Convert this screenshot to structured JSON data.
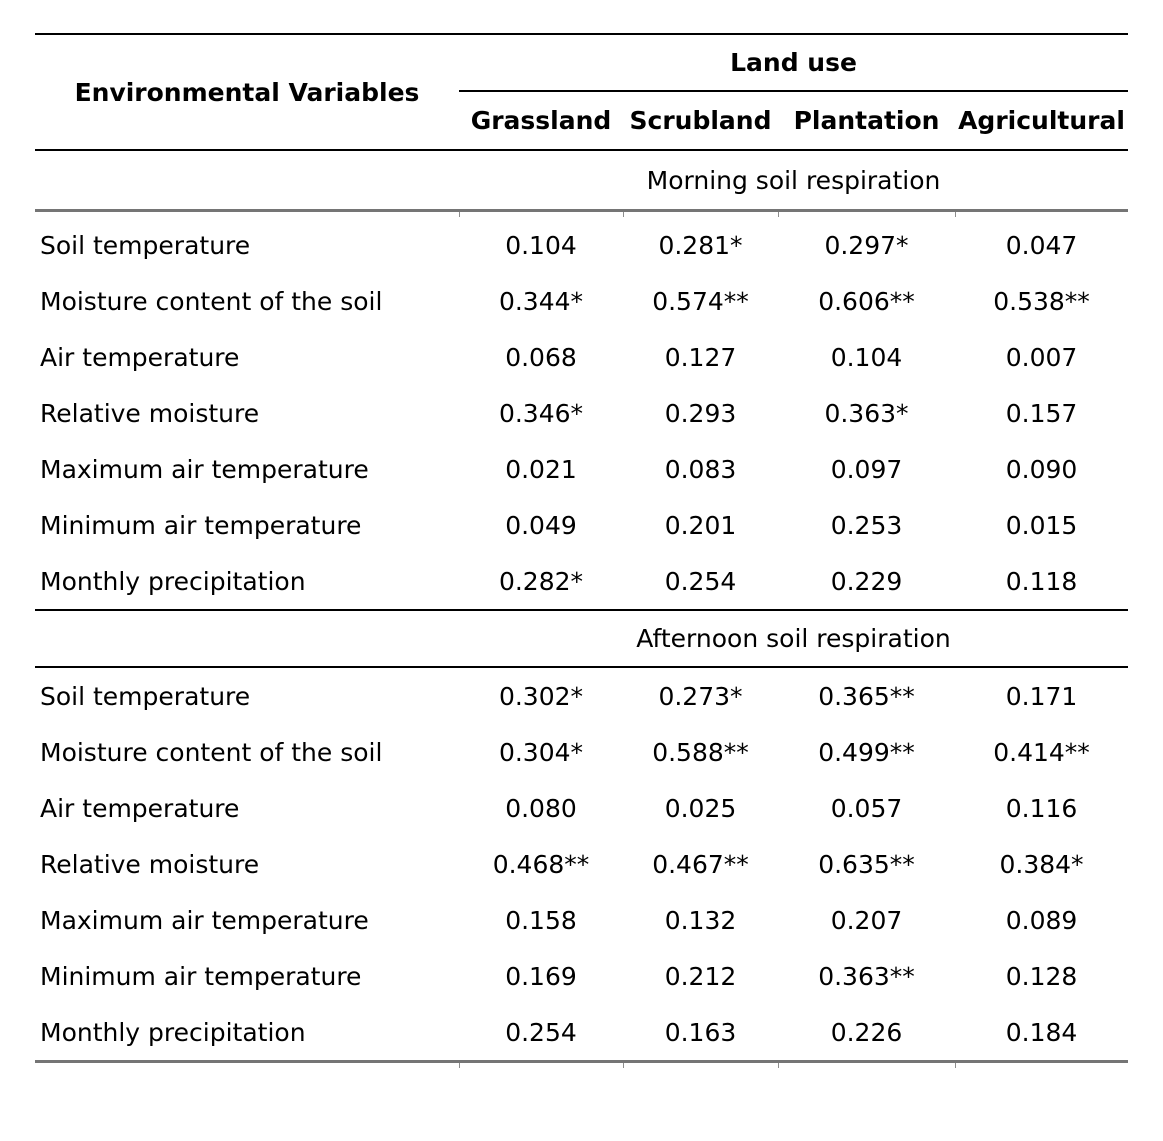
{
  "table": {
    "header": {
      "env_col": "Environmental Variables",
      "group_label": "Land use",
      "columns": [
        "Grassland",
        "Scrubland",
        "Plantation",
        "Agricultural"
      ]
    },
    "sections": [
      {
        "title": "Morning soil respiration",
        "rows": [
          {
            "label": "Soil temperature",
            "values": [
              "0.104",
              "0.281*",
              "0.297*",
              "0.047"
            ]
          },
          {
            "label": "Moisture content of the soil",
            "values": [
              "0.344*",
              "0.574**",
              "0.606**",
              "0.538**"
            ]
          },
          {
            "label": "Air temperature",
            "values": [
              "0.068",
              "0.127",
              "0.104",
              "0.007"
            ]
          },
          {
            "label": "Relative moisture",
            "values": [
              "0.346*",
              "0.293",
              "0.363*",
              "0.157"
            ]
          },
          {
            "label": "Maximum air temperature",
            "values": [
              "0.021",
              "0.083",
              "0.097",
              "0.090"
            ]
          },
          {
            "label": "Minimum air temperature",
            "values": [
              "0.049",
              "0.201",
              "0.253",
              "0.015"
            ]
          },
          {
            "label": "Monthly precipitation",
            "values": [
              "0.282*",
              "0.254",
              "0.229",
              "0.118"
            ]
          }
        ]
      },
      {
        "title": "Afternoon soil respiration",
        "rows": [
          {
            "label": "Soil temperature",
            "values": [
              "0.302*",
              "0.273*",
              "0.365**",
              "0.171"
            ]
          },
          {
            "label": "Moisture content of the soil",
            "values": [
              "0.304*",
              "0.588**",
              "0.499**",
              "0.414**"
            ]
          },
          {
            "label": "Air temperature",
            "values": [
              "0.080",
              "0.025",
              "0.057",
              "0.116"
            ]
          },
          {
            "label": "Relative moisture",
            "values": [
              "0.468**",
              "0.467**",
              "0.635**",
              "0.384*"
            ]
          },
          {
            "label": "Maximum air temperature",
            "values": [
              "0.158",
              "0.132",
              "0.207",
              "0.089"
            ]
          },
          {
            "label": "Minimum air temperature",
            "values": [
              "0.169",
              "0.212",
              "0.363**",
              "0.128"
            ]
          },
          {
            "label": "Monthly precipitation",
            "values": [
              "0.254",
              "0.163",
              "0.226",
              "0.184"
            ]
          }
        ]
      }
    ]
  },
  "colors": {
    "text": "#000000",
    "rule_black": "#000000",
    "rule_gray": "#757575"
  }
}
